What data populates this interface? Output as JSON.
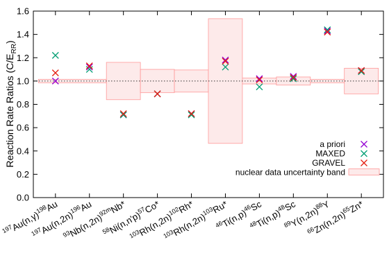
{
  "chart_data": {
    "type": "scatter",
    "ylabel_main": "Reaction Rate Ratios (C/E",
    "ylabel_sub": "RR",
    "ylabel_close": ")",
    "ylim": [
      0.0,
      1.6
    ],
    "yticks": [
      "0.0",
      "0.2",
      "0.4",
      "0.6",
      "0.8",
      "1.0",
      "1.2",
      "1.4",
      "1.6"
    ],
    "reference_line": 1.0,
    "categories": [
      {
        "mass1": "197",
        "base1": "Au(n,",
        "gamma": "γ",
        "base1b": ")",
        "mass2": "198",
        "base2": "Au",
        "star": ""
      },
      {
        "mass1": "197",
        "base1": "Au(n,2n)",
        "gamma": "",
        "base1b": "",
        "mass2": "196",
        "base2": "Au",
        "star": ""
      },
      {
        "mass1": "93",
        "base1": "Nb(n,2n)",
        "gamma": "",
        "base1b": "",
        "mass2": "92m",
        "base2": "Nb",
        "star": "*"
      },
      {
        "mass1": "58",
        "base1": "Ni(n,n'p)",
        "gamma": "",
        "base1b": "",
        "mass2": "57",
        "base2": "Co",
        "star": "*"
      },
      {
        "mass1": "103",
        "base1": "Rh(n,2n)",
        "gamma": "",
        "base1b": "",
        "mass2": "102",
        "base2": "Rh",
        "star": "*"
      },
      {
        "mass1": "103",
        "base1": "Rh(n,2n)",
        "gamma": "",
        "base1b": "",
        "mass2": "103",
        "base2": "Ru",
        "star": "*"
      },
      {
        "mass1": "46",
        "base1": "Ti(n,p)",
        "gamma": "",
        "base1b": "",
        "mass2": "46",
        "base2": "Sc",
        "star": ""
      },
      {
        "mass1": "48",
        "base1": "Ti(n,p)",
        "gamma": "",
        "base1b": "",
        "mass2": "48",
        "base2": "Sc",
        "star": ""
      },
      {
        "mass1": "89",
        "base1": "Y(n,2n)",
        "gamma": "",
        "base1b": "",
        "mass2": "88",
        "base2": "Y",
        "star": ""
      },
      {
        "mass1": "66",
        "base1": "Zn(n,2n)",
        "gamma": "",
        "base1b": "",
        "mass2": "65",
        "base2": "Zn",
        "star": "*"
      }
    ],
    "series": [
      {
        "name": "a priori",
        "color": "#9400d3",
        "values": [
          1.0,
          1.12,
          0.71,
          0.89,
          0.72,
          1.18,
          1.02,
          1.04,
          1.43,
          1.09
        ]
      },
      {
        "name": "MAXED",
        "color": "#009e73",
        "values": [
          1.22,
          1.1,
          0.71,
          0.89,
          0.71,
          1.12,
          0.95,
          1.02,
          1.44,
          1.08
        ]
      },
      {
        "name": "GRAVEL",
        "color": "#e51e10",
        "values": [
          1.07,
          1.13,
          0.72,
          0.89,
          0.72,
          1.17,
          1.01,
          1.03,
          1.42,
          1.09
        ]
      }
    ],
    "band": {
      "name": "nuclear data uncertainty band",
      "color": "#ff9999",
      "steps": [
        {
          "from": -0.5,
          "to": 1.5,
          "low": 0.985,
          "high": 1.015
        },
        {
          "from": 1.5,
          "to": 2.5,
          "low": 0.84,
          "high": 1.16
        },
        {
          "from": 2.5,
          "to": 3.5,
          "low": 0.9,
          "high": 1.1
        },
        {
          "from": 3.5,
          "to": 4.5,
          "low": 0.905,
          "high": 1.095
        },
        {
          "from": 4.5,
          "to": 5.5,
          "low": 0.465,
          "high": 1.535
        },
        {
          "from": 5.5,
          "to": 6.5,
          "low": 0.975,
          "high": 1.025
        },
        {
          "from": 6.5,
          "to": 7.5,
          "low": 0.965,
          "high": 1.035
        },
        {
          "from": 7.5,
          "to": 8.5,
          "low": 0.985,
          "high": 1.015
        },
        {
          "from": 8.5,
          "to": 9.5,
          "low": 0.89,
          "high": 1.11
        }
      ]
    },
    "legend_position": "bottom-right"
  }
}
